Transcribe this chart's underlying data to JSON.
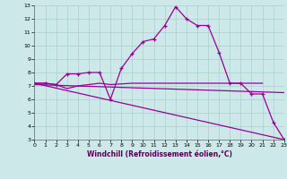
{
  "xlabel": "Windchill (Refroidissement éolien,°C)",
  "background_color": "#cce8e8",
  "grid_color": "#aacfcf",
  "line_color": "#990099",
  "xlim": [
    0,
    23
  ],
  "ylim": [
    3,
    13
  ],
  "xticks": [
    0,
    1,
    2,
    3,
    4,
    5,
    6,
    7,
    8,
    9,
    10,
    11,
    12,
    13,
    14,
    15,
    16,
    17,
    18,
    19,
    20,
    21,
    22,
    23
  ],
  "yticks": [
    3,
    4,
    5,
    6,
    7,
    8,
    9,
    10,
    11,
    12,
    13
  ],
  "line1_x": [
    0,
    1,
    2,
    3,
    4,
    5,
    6,
    7,
    8,
    9,
    10,
    11,
    12,
    13,
    14,
    15,
    16,
    17,
    18,
    19,
    20,
    21,
    22,
    23
  ],
  "line1_y": [
    7.2,
    7.2,
    7.1,
    7.9,
    7.9,
    8.0,
    8.0,
    6.0,
    8.3,
    9.4,
    10.3,
    10.5,
    11.5,
    12.9,
    12.0,
    11.5,
    11.5,
    9.5,
    7.2,
    7.2,
    6.4,
    6.4,
    4.3,
    3.0
  ],
  "line2_x": [
    0,
    1,
    2,
    3,
    4,
    5,
    6,
    7,
    8,
    9,
    10,
    11,
    12,
    13,
    14,
    15,
    16,
    17,
    18,
    19,
    20,
    21
  ],
  "line2_y": [
    7.2,
    7.2,
    7.1,
    6.8,
    7.0,
    7.1,
    7.2,
    7.1,
    7.15,
    7.2,
    7.2,
    7.2,
    7.2,
    7.2,
    7.2,
    7.2,
    7.2,
    7.2,
    7.2,
    7.2,
    7.2,
    7.2
  ],
  "line3_x": [
    0,
    23
  ],
  "line3_y": [
    7.2,
    3.0
  ],
  "line4_x": [
    0,
    23
  ],
  "line4_y": [
    7.1,
    6.5
  ]
}
